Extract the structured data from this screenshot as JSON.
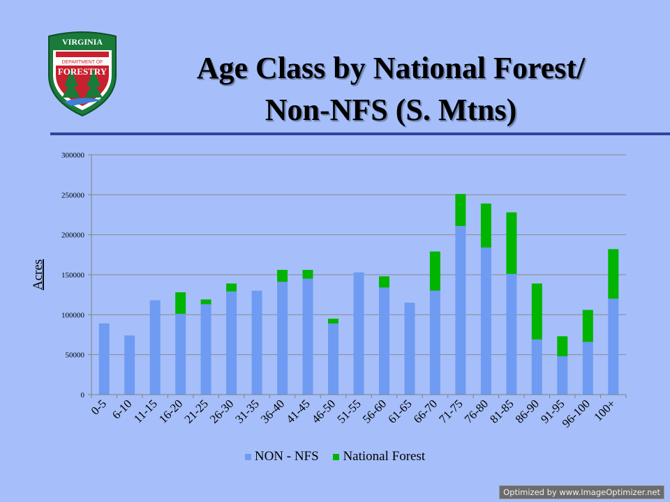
{
  "logo": {
    "top_text": "VIRGINIA",
    "middle_text": "DEPARTMENT OF",
    "bottom_text": "FORESTRY"
  },
  "slide": {
    "title_line1": "Age Class by  National Forest/",
    "title_line2": "Non-NFS (S. Mtns)"
  },
  "chart_data": {
    "type": "bar",
    "stacked": true,
    "categories": [
      "0-5",
      "6-10",
      "11-15",
      "16-20",
      "21-25",
      "26-30",
      "31-35",
      "36-40",
      "41-45",
      "46-50",
      "51-55",
      "56-60",
      "61-65",
      "66-70",
      "71-75",
      "76-80",
      "81-85",
      "86-90",
      "91-95",
      "96-100",
      "100+"
    ],
    "series": [
      {
        "name": "NON - NFS",
        "color": "#6f9bf2",
        "values": [
          89000,
          74000,
          118000,
          101000,
          113000,
          129000,
          130000,
          141000,
          145000,
          89000,
          153000,
          134000,
          115000,
          130000,
          211000,
          184000,
          151000,
          69000,
          48000,
          66000,
          120000
        ]
      },
      {
        "name": "National Forest",
        "color": "#00b400",
        "values": [
          0,
          0,
          0,
          27000,
          6000,
          10000,
          0,
          15000,
          11000,
          6000,
          0,
          14000,
          0,
          49000,
          40000,
          55000,
          77000,
          70000,
          25000,
          40000,
          62000
        ]
      }
    ],
    "xlabel": "",
    "ylabel": "Acres",
    "ylim": [
      0,
      300000
    ],
    "yticks": [
      0,
      50000,
      100000,
      150000,
      200000,
      250000,
      300000
    ],
    "grid": true,
    "legend": "bottom"
  },
  "watermark": "Optimized by www.ImageOptimizer.net"
}
